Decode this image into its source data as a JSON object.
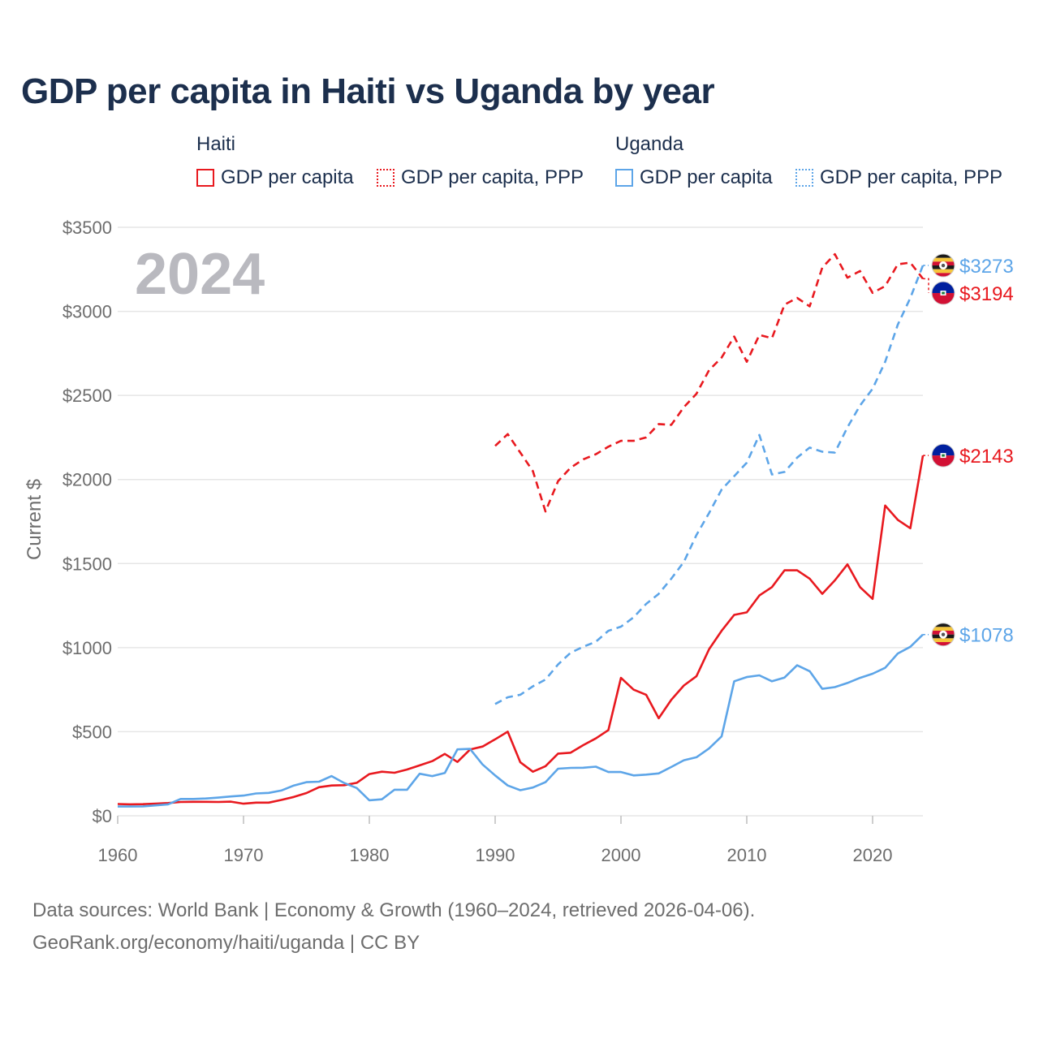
{
  "title": "GDP per capita in Haiti vs Uganda by year",
  "legend": {
    "groups": [
      "Haiti",
      "Uganda"
    ],
    "items": [
      "GDP per capita",
      "GDP per capita, PPP",
      "GDP per capita",
      "GDP per capita, PPP"
    ]
  },
  "footer": {
    "line1": "Data sources: World Bank | Economy & Growth (1960–2024, retrieved 2026-04-06).",
    "line2": "GeoRank.org/economy/haiti/uganda | CC BY"
  },
  "colors": {
    "haiti": "#e8191f",
    "uganda": "#5da5e8",
    "grid": "#e6e6e6"
  },
  "chart_data": {
    "type": "line",
    "title": "GDP per capita in Haiti vs Uganda by year",
    "ylabel": "Current $",
    "xlabel": "",
    "xlim": [
      1960,
      2024
    ],
    "ylim": [
      0,
      3500
    ],
    "current_year": "2024",
    "x_ticks": [
      1960,
      1970,
      1980,
      1990,
      2000,
      2010,
      2020
    ],
    "x_tick_labels": [
      "1960",
      "1970",
      "1980",
      "1990",
      "2000",
      "2010",
      "2020"
    ],
    "y_ticks": [
      0,
      500,
      1000,
      1500,
      2000,
      2500,
      3000,
      3500
    ],
    "y_tick_labels": [
      "$0",
      "$500",
      "$1000",
      "$1500",
      "$2000",
      "$2500",
      "$3000",
      "$3500"
    ],
    "end_labels": [
      "$3273",
      "$3194",
      "$2143",
      "$1078"
    ],
    "series": [
      {
        "name": "Haiti GDP per capita",
        "country": "Haiti",
        "style": "solid",
        "start_year": 1960,
        "values": [
          70,
          68,
          69,
          72,
          76,
          82,
          83,
          83,
          82,
          84,
          72,
          78,
          78,
          94,
          112,
          135,
          170,
          180,
          182,
          196,
          248,
          262,
          256,
          275,
          300,
          325,
          368,
          320,
          394,
          412,
          455,
          500,
          318,
          262,
          295,
          370,
          375,
          420,
          460,
          510,
          820,
          750,
          720,
          580,
          690,
          775,
          830,
          990,
          1100,
          1195,
          1210,
          1310,
          1360,
          1460,
          1460,
          1410,
          1320,
          1400,
          1495,
          1360,
          1290,
          1845,
          1760,
          1710,
          2143
        ]
      },
      {
        "name": "Haiti GDP per capita, PPP",
        "country": "Haiti",
        "style": "dashed",
        "start_year": 1990,
        "values": [
          2200,
          2270,
          2160,
          2050,
          1810,
          1990,
          2070,
          2120,
          2150,
          2195,
          2230,
          2230,
          2250,
          2330,
          2325,
          2430,
          2510,
          2650,
          2725,
          2850,
          2700,
          2860,
          2840,
          3040,
          3080,
          3030,
          3260,
          3340,
          3200,
          3240,
          3110,
          3150,
          3280,
          3290,
          3194
        ]
      },
      {
        "name": "Uganda GDP per capita",
        "country": "Uganda",
        "style": "solid",
        "start_year": 1960,
        "values": [
          55,
          55,
          56,
          62,
          68,
          100,
          100,
          103,
          108,
          115,
          120,
          133,
          136,
          150,
          180,
          200,
          203,
          236,
          195,
          165,
          92,
          98,
          155,
          155,
          250,
          236,
          255,
          395,
          398,
          305,
          240,
          180,
          152,
          168,
          200,
          280,
          285,
          286,
          292,
          260,
          260,
          240,
          245,
          252,
          290,
          330,
          348,
          400,
          472,
          800,
          825,
          835,
          800,
          822,
          895,
          860,
          755,
          765,
          790,
          820,
          845,
          880,
          965,
          1005,
          1078
        ]
      },
      {
        "name": "Uganda GDP per capita, PPP",
        "country": "Uganda",
        "style": "dashed",
        "start_year": 1990,
        "values": [
          665,
          705,
          720,
          770,
          810,
          900,
          970,
          1005,
          1035,
          1100,
          1125,
          1180,
          1260,
          1320,
          1410,
          1510,
          1670,
          1800,
          1940,
          2020,
          2100,
          2265,
          2030,
          2045,
          2130,
          2190,
          2165,
          2160,
          2310,
          2440,
          2540,
          2700,
          2920,
          3080,
          3273
        ]
      }
    ]
  }
}
